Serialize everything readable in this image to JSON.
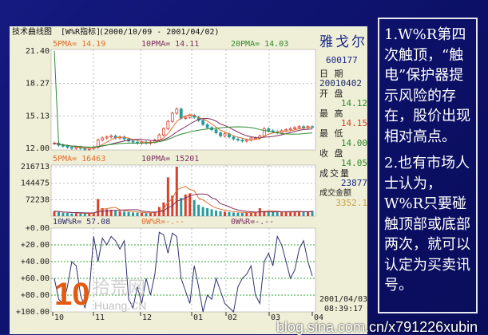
{
  "header": {
    "title": "技术曲线图",
    "indicator": "[W%R指标]",
    "range": "(2000/10/09 - 2001/04/02)"
  },
  "price_panel": {
    "ma5": "5PMA= 14.19",
    "ma10": "10PMA= 14.11",
    "ma20": "20PMA= 14.03",
    "ticks": [
      "21.40",
      "18.27",
      "15.13",
      "12.00"
    ]
  },
  "volume_panel": {
    "ma5": "5PMA= 16463",
    "ma10": "10PMA= 15201",
    "ticks": [
      "216713",
      "144475",
      "72238"
    ]
  },
  "wr_panel": {
    "wr10": "10W%R= 57.08",
    "wr_b": "0W%R=-.--",
    "wr_c": "0W%R=-.--",
    "ticks": [
      "+0.00",
      "+20.00",
      "+40.00",
      "+60.00",
      "+80.00",
      "+100.00"
    ]
  },
  "x_axis": {
    "months": [
      "10",
      "11",
      "12",
      "01",
      "02",
      "03",
      "04"
    ]
  },
  "stock_info": {
    "name": "雅戈尔",
    "code": "600177",
    "date_label": "日  期",
    "date": "20010402",
    "open_label": "开  盘",
    "open": "14.12",
    "high_label": "最  高",
    "high": "14.15",
    "low_label": "最  低",
    "low": "14.00",
    "close_label": "收  盘",
    "close": "14.05",
    "volume_label": "成交量",
    "volume": "23877",
    "amount_label": "成交金额",
    "amount": "3352.1",
    "current_date": "2001/04/03",
    "current_time": "08:39:17"
  },
  "notes": {
    "p1": "1.W%R第四次触顶，“触电”保护器提示风险的存在，股价出现相对高点。",
    "p2": "2.也有市场人士认为，W%R只要碰触顶部或底部两次，就可以认定为买卖讯号。"
  },
  "watermark": {
    "logo": "10",
    "site_cn": "拾荒网",
    "site_en": "Huang.CN",
    "blog": "blog.sina.com.cn/x791226xubin"
  },
  "colors": {
    "up": "#d8402c",
    "down": "#2a9a9a",
    "ma5": "#e07030",
    "ma10": "#7a3060",
    "ma20": "#2e8a2e",
    "wr": "#303070"
  },
  "chart_data": [
    {
      "type": "line",
      "title": "技术曲线图",
      "ylim": [
        12.0,
        21.4
      ],
      "x_range": [
        "2000/10/09",
        "2001/04/02"
      ],
      "close": [
        12.5,
        12.3,
        12.2,
        12.1,
        12.0,
        12.1,
        12.0,
        11.9,
        12.0,
        12.1,
        12.8,
        13.0,
        13.1,
        13.2,
        13.0,
        13.1,
        12.9,
        12.7,
        12.6,
        12.5,
        12.6,
        12.5,
        12.6,
        12.8,
        13.3,
        13.9,
        14.6,
        15.4,
        15.8,
        14.9,
        15.0,
        15.2,
        15.0,
        14.7,
        14.3,
        14.0,
        13.8,
        13.5,
        13.2,
        13.4,
        13.1,
        12.9,
        12.8,
        12.7,
        12.8,
        13.0,
        13.0,
        13.2,
        13.9,
        13.7,
        13.6,
        13.5,
        13.7,
        13.8,
        13.9,
        14.0,
        14.1,
        14.0,
        14.1,
        14.05
      ]
    },
    {
      "type": "bar",
      "ylim": [
        0,
        216713
      ],
      "values": [
        22000,
        18000,
        15000,
        14000,
        12000,
        13000,
        12000,
        11000,
        12000,
        14000,
        75000,
        35000,
        30000,
        28000,
        24000,
        22000,
        20000,
        18000,
        16000,
        15000,
        14000,
        13000,
        14000,
        20000,
        40000,
        60000,
        170000,
        90000,
        216713,
        80000,
        95000,
        100000,
        70000,
        50000,
        40000,
        35000,
        30000,
        25000,
        22000,
        20000,
        18000,
        16000,
        15000,
        14000,
        15000,
        16000,
        18000,
        35000,
        22000,
        20000,
        18000,
        17000,
        18000,
        19000,
        20000,
        18000,
        22000,
        20000,
        21000,
        23877
      ]
    },
    {
      "type": "line",
      "ylim": [
        0,
        100
      ],
      "inverted": true,
      "values": [
        60,
        85,
        90,
        70,
        40,
        45,
        80,
        95,
        75,
        10,
        40,
        12,
        20,
        10,
        15,
        25,
        15,
        85,
        95,
        70,
        90,
        60,
        80,
        55,
        5,
        8,
        30,
        6,
        10,
        60,
        75,
        90,
        45,
        70,
        100,
        80,
        85,
        60,
        75,
        90,
        95,
        100,
        70,
        60,
        55,
        45,
        80,
        90,
        40,
        30,
        45,
        10,
        20,
        40,
        60,
        50,
        25,
        15,
        40,
        57.08
      ]
    }
  ]
}
